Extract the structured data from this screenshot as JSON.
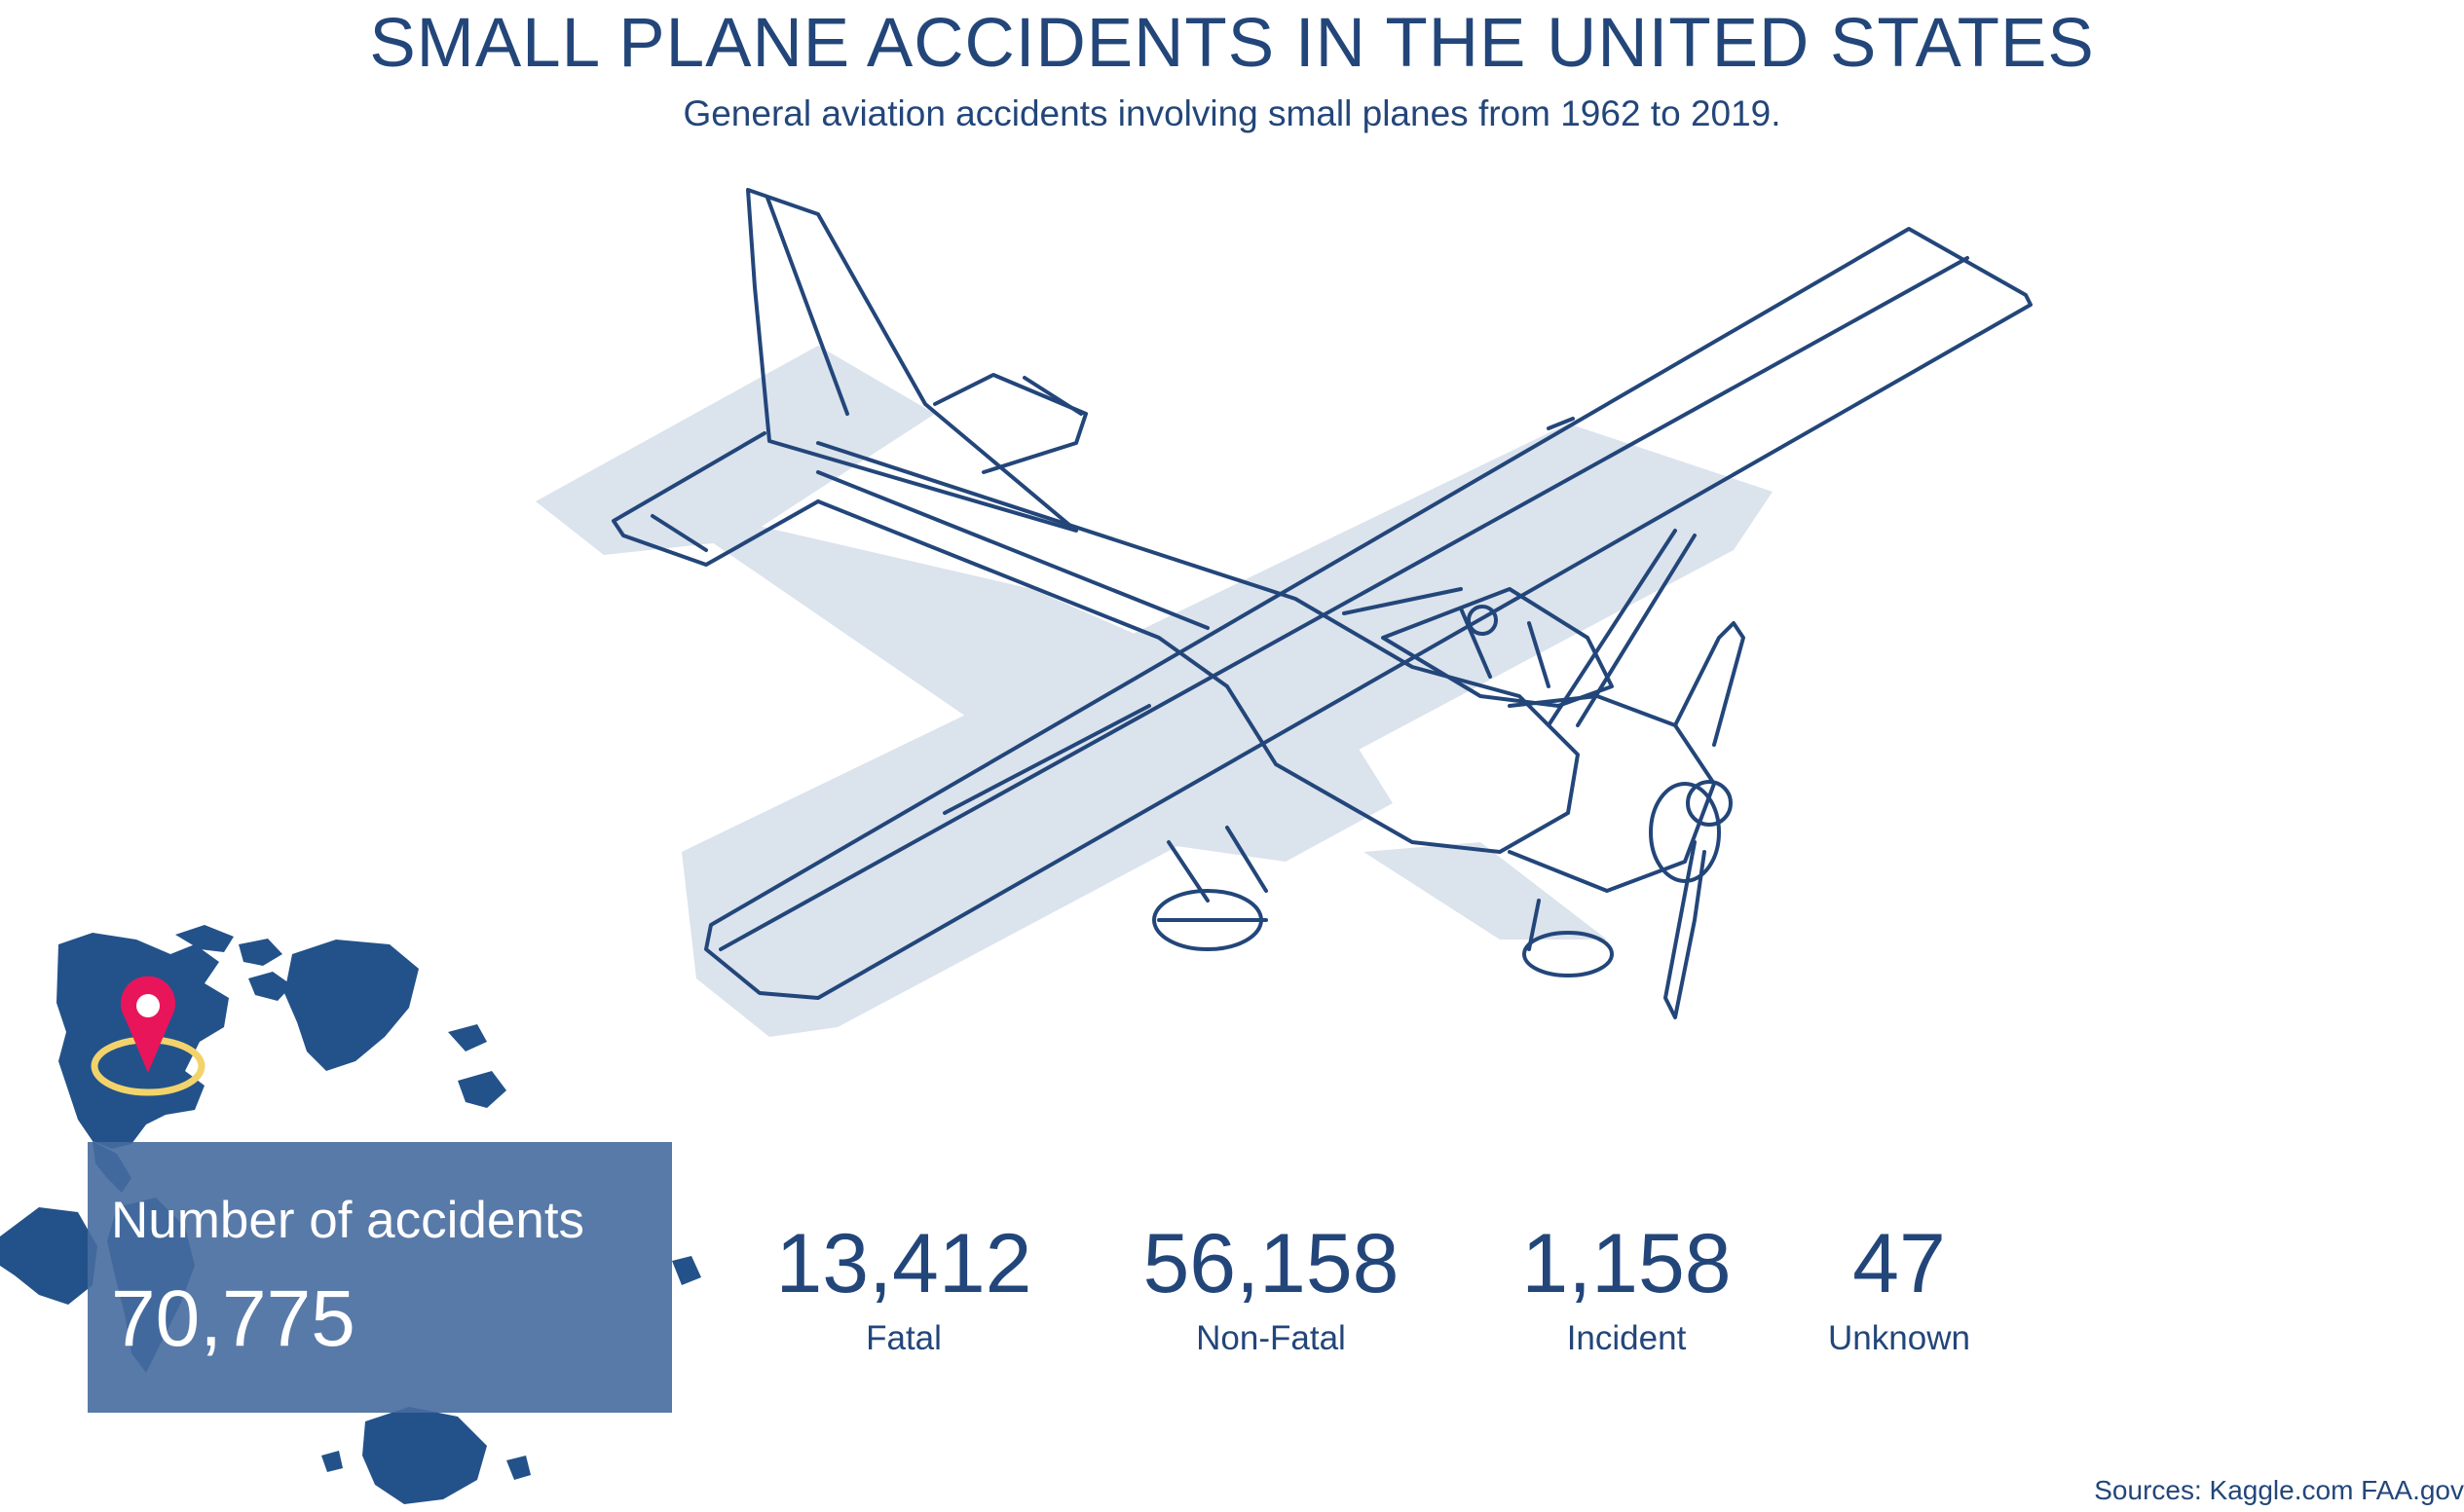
{
  "header": {
    "title": "SMALL PLANE ACCIDENTS IN THE UNITED STATES",
    "subtitle": "General aviation accidents involving small planes from 1962 to 2019."
  },
  "summary": {
    "label": "Number of accidents",
    "value": "70,775"
  },
  "stats": [
    {
      "value": "13,412",
      "label": "Fatal"
    },
    {
      "value": "56,158",
      "label": "Non-Fatal"
    },
    {
      "value": "1,158",
      "label": "Incident"
    },
    {
      "value": "47",
      "label": "Unknown"
    }
  ],
  "footer": {
    "sources": "Sources: Kaggle.com FAA.gov"
  },
  "colors": {
    "primary": "#23467a",
    "map_fill": "#23528a",
    "shadow": "#dbe3ed",
    "marker": "#e8155a",
    "marker_ring": "#f2d36b"
  },
  "icons": {
    "plane": "airplane-illustration",
    "map": "world-map",
    "marker": "location-pin-icon"
  }
}
